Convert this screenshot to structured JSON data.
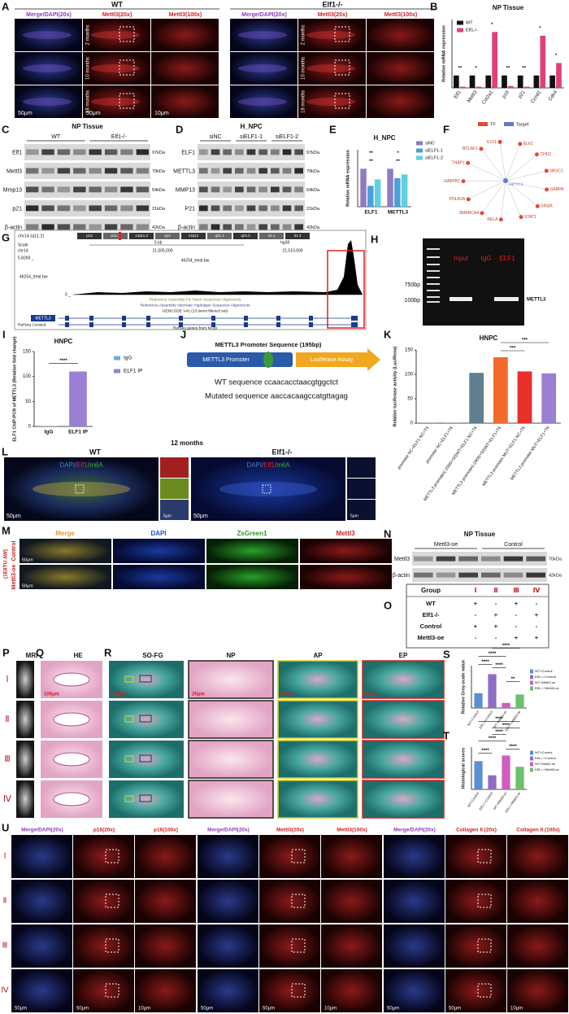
{
  "figure": {
    "A": {
      "letter": "A",
      "groups": [
        "WT",
        "Elf1-/-"
      ],
      "columns": [
        "Merge/DAPI(20x)",
        "Mettl3(20x)",
        "Mettl3(100x)"
      ],
      "rows": [
        "2 months",
        "10 months",
        "18 months"
      ],
      "scale_bars": [
        "50μm",
        "50μm",
        "10μm"
      ]
    },
    "C": {
      "letter": "C",
      "title": "NP Tissue",
      "groups": [
        "WT",
        "Elf1-/-"
      ],
      "proteins": [
        "Elf1",
        "Mettl3",
        "Mmp13",
        "p21",
        "β-actin"
      ],
      "sizes": [
        "97kDa",
        "79kDa",
        "54kDa",
        "21kDa",
        "42kDa"
      ]
    },
    "D": {
      "letter": "D",
      "title": "H_NPC",
      "groups": [
        "siNC",
        "siELF1-1",
        "siELF1-2"
      ],
      "proteins": [
        "ELF1",
        "METTL3",
        "MMP13",
        "P21",
        "β-actin"
      ],
      "sizes": [
        "97kDa",
        "79kDa",
        "54kDa",
        "21kDa",
        "42kDa"
      ]
    },
    "F": {
      "letter": "F",
      "legend": [
        "TF",
        "Target"
      ],
      "center": "METTL3",
      "nodes": [
        "ELK1",
        "CHD2",
        "NR3C1",
        "GABPA",
        "SIN3A",
        "STAT1",
        "RELA",
        "SMARCA4",
        "POLR2A",
        "GABPB1",
        "THAP1",
        "BCLAF1",
        "ELF1"
      ]
    },
    "G": {
      "letter": "G",
      "position": "chr14 (q11.2)",
      "bands": [
        "p13",
        "p11.2",
        "14q11.2",
        "q12",
        "14q12",
        "q21.1",
        "q24.3",
        "31.1",
        "31.3"
      ],
      "scale": "Scale",
      "scale_size": "5 kb",
      "assembly": "hg38",
      "chrom": "chr14:",
      "coords": [
        "21,505,000",
        "21,510,000"
      ],
      "track_max": "5.8269 _",
      "track_name": "46254_treat.bw",
      "track_min": "0 _",
      "tracks": [
        "Reference Assembly Fix Patch Sequence Alignments",
        "Reference Assembly Alternate Haplotype Sequence Alignments",
        "GENCODE V41 (13 items filtered out)"
      ],
      "gene": "METTL3",
      "refseq": "RefSeq Curated",
      "refseq_desc": "RefSeq genes from NCBI"
    },
    "H": {
      "letter": "H",
      "lanes": [
        "Input",
        "IgG",
        "ELF1"
      ],
      "markers": [
        "750bp",
        "100bp"
      ],
      "product": "METTL3"
    },
    "J": {
      "letter": "J",
      "title": "METTL3 Promoter Sequence (195bp)",
      "promoter": "METTL3 Promoter",
      "assay": "Luciferase Assay",
      "wt": "WT sequence ccaacacctaacgtggctct",
      "mut": "Mutated sequence aaccacaagccatgttagag"
    },
    "L": {
      "letter": "L",
      "title": "12 months",
      "groups": [
        "WT",
        "Elf1-/-"
      ],
      "stain_parts": [
        "DAPI/",
        "Elf1",
        "/m6A"
      ],
      "scale_bars": [
        "50μm",
        "5μm"
      ]
    },
    "M": {
      "letter": "M",
      "columns": [
        "Merge",
        "DAPI",
        "ZsGreen1",
        "Mettl3"
      ],
      "rows": [
        "Control",
        "Mettl3-oe"
      ],
      "group": "(1E8TU 4W)",
      "scale_bar": "50μm"
    },
    "N": {
      "letter": "N",
      "title": "NP Tissue",
      "groups": [
        "Mettl3-oe",
        "Control"
      ],
      "proteins": [
        "Mettl3",
        "β-actin"
      ],
      "sizes": [
        "70kDa",
        "42kDa"
      ]
    },
    "O": {
      "letter": "O",
      "header": [
        "Group",
        "Ⅰ",
        "Ⅱ",
        "Ⅲ",
        "Ⅳ"
      ],
      "rows": [
        [
          "WT",
          "+",
          "-",
          "+",
          "-"
        ],
        [
          "Elf1-/-",
          "-",
          "+",
          "-",
          "+"
        ],
        [
          "Control",
          "+",
          "+",
          "-",
          "-"
        ],
        [
          "Mettl3-oe",
          "-",
          "-",
          "+",
          "+"
        ]
      ]
    },
    "PQR": {
      "letters": [
        "P",
        "Q",
        "R"
      ],
      "columns": [
        "MRI",
        "HE",
        "SO-FG",
        "NP",
        "AP",
        "EP"
      ],
      "rows": [
        "Ⅰ",
        "Ⅱ",
        "Ⅲ",
        "Ⅳ"
      ],
      "scale_bars": [
        "100μm",
        "100μm",
        "20μm",
        "20μm",
        "20μm"
      ]
    },
    "U": {
      "letter": "U",
      "columns": [
        "Merge/DAPI(20x)",
        "p16(20x)",
        "p16(100x)",
        "Merge/DAPI(20x)",
        "Mettl3(20x)",
        "Mettl3(100x)",
        "Merge/DAPI(20x)",
        "Collagen II (20x)",
        "Collagen II (100x)"
      ],
      "rows": [
        "Ⅰ",
        "Ⅱ",
        "Ⅲ",
        "Ⅳ"
      ],
      "scale_bars": [
        "50μm",
        "50μm",
        "10μm"
      ]
    }
  },
  "chart_data": [
    {
      "type": "bar",
      "letter": "B",
      "title": "NP Tissue",
      "y_label": "Relative mRNA expression",
      "categories": [
        "Elf1",
        "Mettl3",
        "Col2a1",
        "p16",
        "p21",
        "Ccnd1",
        "Cdk4"
      ],
      "series": [
        {
          "name": "WT",
          "color": "#111111",
          "values": [
            1,
            1,
            1,
            1,
            1,
            1,
            1
          ]
        },
        {
          "name": "Elf1-/-",
          "color": "#e0407a",
          "values": [
            0.1,
            0.1,
            4.5,
            0.15,
            0.1,
            4.2,
            2.0
          ]
        }
      ],
      "ylim": [
        0,
        5.5
      ],
      "significance": [
        "**",
        "*",
        "*",
        "**",
        "**",
        "*",
        "*"
      ]
    },
    {
      "type": "bar",
      "letter": "E",
      "title": "H_NPC",
      "y_label": "Relative mRNA expression",
      "categories": [
        "ELF1",
        "METTL3"
      ],
      "series": [
        {
          "name": "siNC",
          "color": "#8e7cc3",
          "values": [
            1,
            1
          ]
        },
        {
          "name": "siELF1-1",
          "color": "#4a9fd8",
          "values": [
            0.55,
            0.75
          ]
        },
        {
          "name": "siELF1-2",
          "color": "#5ed0e0",
          "values": [
            0.72,
            0.85
          ]
        }
      ],
      "ylim": [
        0,
        1.5
      ],
      "significance": [
        "**",
        "**",
        "*",
        "**"
      ]
    },
    {
      "type": "bar",
      "letter": "I",
      "title": "HNPC",
      "y_label": "ELF1 ChIP-PCR of METTL3 (Relative fold change)",
      "categories": [
        "IgG",
        "ELF1 IP"
      ],
      "values": [
        1,
        110
      ],
      "colors": [
        "#6fa8dc",
        "#9b7fd4"
      ],
      "ylim": [
        0,
        150
      ],
      "yticks": [
        0,
        50,
        100,
        150
      ],
      "significance": [
        "****"
      ]
    },
    {
      "type": "bar",
      "letter": "K",
      "title": "HNPC",
      "y_label": "Relative luciferase activity (Luc/Rena)",
      "categories": [
        "promoter NC+ELF1 NC+TK",
        "promoter NC+ELF1+TK",
        "METTL3 promoter(-2906/+50)WT+ELF1 NC+TK",
        "METTL3 promoter(-2906/+50)WT+ELF1+TK",
        "METTL3 promoter MUT+ELF1 NC+TK",
        "METTL3 promoter MUT+ELF1+TK"
      ],
      "values": [
        0.5,
        0.5,
        103,
        135,
        106,
        102
      ],
      "colors": [
        "#5b8fd0",
        "#5b8fd0",
        "#5f7f8f",
        "#f26b2a",
        "#e8302a",
        "#9b7fd4"
      ],
      "ylim": [
        0,
        150
      ],
      "yticks": [
        0,
        50,
        100,
        150
      ],
      "significance": [
        "***",
        "***"
      ]
    },
    {
      "type": "bar",
      "letter": "S",
      "y_label": "Relative Grey-scale value",
      "categories": [
        "WT+Control",
        "Elf1-/-+Control",
        "WT+Mettl3-oe",
        "Elf1-/-+Mettl3-oe"
      ],
      "values": [
        0.35,
        0.8,
        0.12,
        0.32
      ],
      "colors": [
        "#5b8fd0",
        "#8e6cc3",
        "#d05cc0",
        "#6cc070"
      ],
      "ylim": [
        0,
        1
      ],
      "significance": [
        "****",
        "****",
        "****",
        "****",
        "**"
      ]
    },
    {
      "type": "bar",
      "letter": "T",
      "y_label": "Histological scores",
      "categories": [
        "WT+Control",
        "Elf1-/-+Control",
        "WT+Mettl3-oe",
        "Elf1-/-+Mettl3-oe"
      ],
      "values": [
        10,
        5,
        12,
        8
      ],
      "colors": [
        "#5b8fd0",
        "#8e6cc3",
        "#d05cc0",
        "#6cc070"
      ],
      "ylim": [
        0,
        15
      ],
      "significance": [
        "****",
        "****",
        "****",
        "****",
        "****",
        "****"
      ]
    }
  ]
}
